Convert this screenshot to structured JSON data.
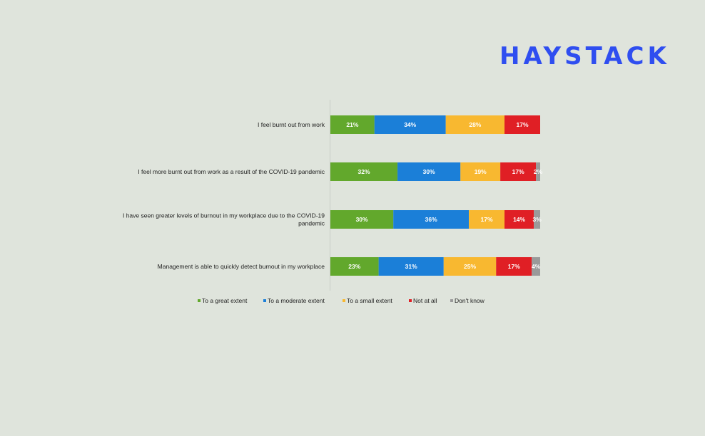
{
  "brand": {
    "logo_text": "HAYSTACK",
    "logo_color": "#2f4ef0"
  },
  "chart_data": {
    "type": "bar",
    "orientation": "horizontal",
    "stacked": true,
    "title": "",
    "xlabel": "",
    "ylabel": "",
    "xlim": [
      0,
      100
    ],
    "categories": [
      [
        "I feel burnt out from work"
      ],
      [
        "I feel more burnt out from work as a result of the COVID-19 pandemic"
      ],
      [
        "I have seen greater levels of burnout in my workplace due to the COVID-19",
        "pandemic"
      ],
      [
        "Management is able to quickly detect burnout in my workplace"
      ]
    ],
    "series": [
      {
        "name": "To a great extent",
        "color": "#62a82c",
        "values": [
          21,
          32,
          30,
          23
        ],
        "labels": [
          "21%",
          "32%",
          "30%",
          "23%"
        ]
      },
      {
        "name": "To a moderate extent",
        "color": "#1b7fd8",
        "values": [
          34,
          30,
          36,
          31
        ],
        "labels": [
          "34%",
          "30%",
          "36%",
          "31%"
        ]
      },
      {
        "name": "To a small extent",
        "color": "#f8b830",
        "values": [
          28,
          19,
          17,
          25
        ],
        "labels": [
          "28%",
          "19%",
          "17%",
          "25%"
        ]
      },
      {
        "name": "Not at all",
        "color": "#e01f25",
        "values": [
          17,
          17,
          14,
          17
        ],
        "labels": [
          "17%",
          "17%",
          "14%",
          "17%"
        ]
      },
      {
        "name": "Don't know",
        "color": "#9a9a9a",
        "values": [
          0,
          2,
          3,
          4
        ],
        "labels": [
          "",
          "2%",
          "3%",
          "4%"
        ]
      }
    ],
    "legend_position": "bottom",
    "grid": false
  }
}
